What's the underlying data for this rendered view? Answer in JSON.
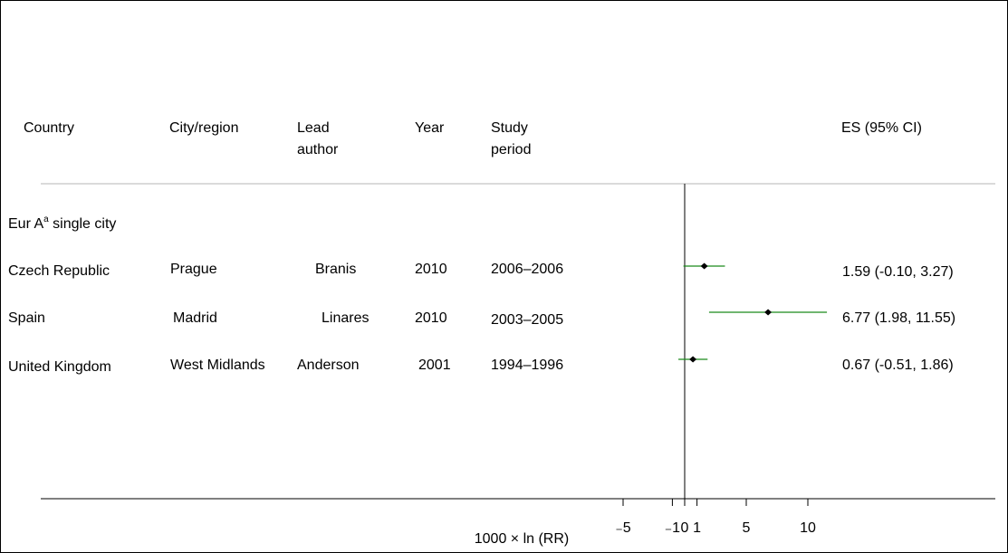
{
  "header": {
    "country": "Country",
    "city": "City/region",
    "author_line1": "Lead",
    "author_line2": "author",
    "year": "Year",
    "period_line1": "Study",
    "period_line2": "period",
    "es": "ES (95% CI)"
  },
  "group": {
    "label_main": "Eur A",
    "label_sup": "a",
    "label_rest": " single city"
  },
  "rows": [
    {
      "country": "Czech Republic",
      "city": "Prague",
      "author": "Branis",
      "year": "2010",
      "period": "2006–2006",
      "es_text": "1.59 (-0.10, 3.27)"
    },
    {
      "country": "Spain",
      "city": "Madrid",
      "author": "Linares",
      "year": "2010",
      "period": "2003–2005",
      "es_text": "6.77 (1.98, 11.55)"
    },
    {
      "country": "United Kingdom",
      "city": "West Midlands",
      "author": "Anderson",
      "year": "2001",
      "period": "1994–1996",
      "es_text": "0.67 (-0.51, 1.86)"
    }
  ],
  "chart_data": {
    "type": "scatter",
    "xlabel": "1000 × ln (RR)",
    "xticks": [
      -5,
      -1,
      0,
      1,
      5,
      10
    ],
    "xtick_labels": [
      "₋5",
      "₋1",
      "0",
      "1",
      "5",
      "10"
    ],
    "reference_line": 0,
    "series": [
      {
        "x": [
          1.59,
          6.77,
          0.67
        ],
        "ci_low": [
          -0.1,
          1.98,
          -0.51
        ],
        "ci_high": [
          3.27,
          11.55,
          1.86
        ]
      }
    ],
    "colors": {
      "ci": "#1a8a1a",
      "point": "#000000",
      "axis": "#000000",
      "separator": "#b4b4b4"
    },
    "grid": false
  }
}
